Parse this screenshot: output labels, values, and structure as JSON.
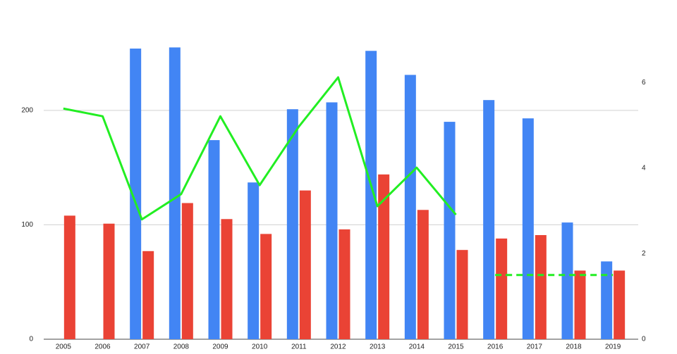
{
  "chart_data": {
    "type": "bar",
    "categories": [
      "2005",
      "2006",
      "2007",
      "2008",
      "2009",
      "2010",
      "2011",
      "2012",
      "2013",
      "2014",
      "2015",
      "2016",
      "2017",
      "2018",
      "2019"
    ],
    "series": [
      {
        "type": "bar",
        "color": "#4285f4",
        "values": [
          null,
          null,
          254,
          255,
          174,
          137,
          201,
          207,
          252,
          231,
          190,
          209,
          193,
          102,
          68
        ]
      },
      {
        "type": "bar",
        "color": "#ea4335",
        "values": [
          108,
          101,
          77,
          119,
          105,
          92,
          130,
          96,
          144,
          113,
          78,
          88,
          91,
          60,
          60
        ]
      },
      {
        "type": "line",
        "color": "#22ee22",
        "axis": "y2",
        "dashed": false,
        "values": [
          5.39,
          5.21,
          2.8,
          3.39,
          5.21,
          3.6,
          4.97,
          6.12,
          3.11,
          4.01,
          2.91,
          null,
          null,
          null,
          null
        ]
      },
      {
        "type": "line",
        "color": "#22ee22",
        "axis": "y2",
        "dashed": true,
        "values": [
          null,
          null,
          null,
          null,
          null,
          null,
          null,
          null,
          null,
          null,
          null,
          1.5,
          1.5,
          1.5,
          1.5
        ]
      }
    ],
    "ylim": [
      0,
      270
    ],
    "yticks": [
      0,
      100,
      200
    ],
    "y2lim": [
      0,
      7.22
    ],
    "y2ticks": [
      0,
      2,
      4,
      6
    ],
    "grid": true
  }
}
